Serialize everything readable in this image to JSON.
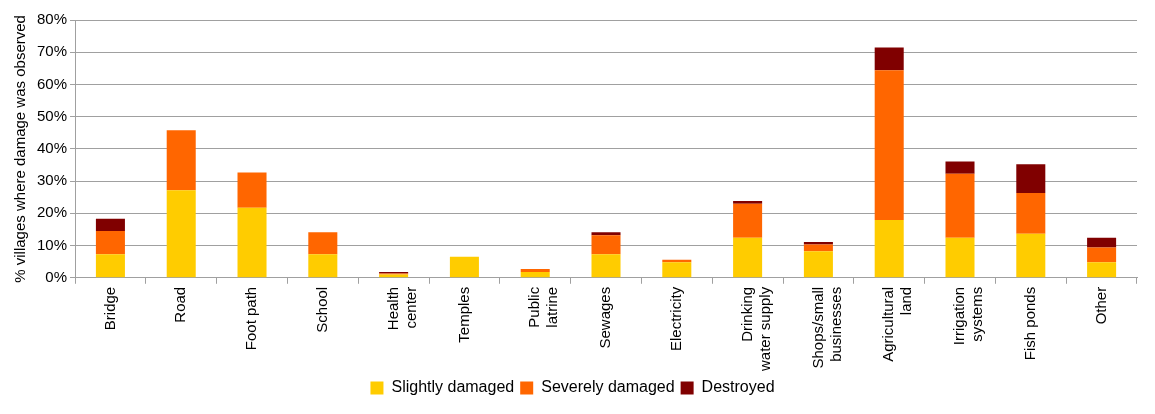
{
  "chart_data": {
    "type": "bar",
    "stacked": true,
    "ylabel": "% villages where damage was observed",
    "categories": [
      "Bridge",
      "Road",
      "Foot path",
      "School",
      "Health center",
      "Temples",
      "Public latrine",
      "Sewages",
      "Electricity",
      "Drinking water supply",
      "Shops/small businesses",
      "Agricultural land",
      "Irrigation systems",
      "Fish ponds",
      "Other"
    ],
    "series": [
      {
        "name": "Slightly damaged",
        "color": "#ffcc00",
        "values": [
          7.3,
          27.2,
          21.7,
          7.3,
          1.0,
          6.5,
          1.8,
          7.3,
          4.8,
          12.4,
          8.2,
          17.9,
          12.4,
          13.7,
          4.8
        ]
      },
      {
        "name": "Severely damaged",
        "color": "#ff6600",
        "values": [
          7.2,
          18.6,
          11.0,
          6.8,
          0.3,
          0,
          0.9,
          5.9,
          0.8,
          10.6,
          2.1,
          46.5,
          19.9,
          12.6,
          4.6
        ]
      },
      {
        "name": "Destroyed",
        "color": "#800000",
        "values": [
          3.8,
          0,
          0,
          0,
          0.5,
          0,
          0,
          0.9,
          0,
          0.8,
          0.8,
          7.1,
          3.8,
          8.9,
          3.0
        ]
      }
    ],
    "ylim": [
      0,
      80
    ],
    "yticks": [
      {
        "value": 0,
        "label": "0%"
      },
      {
        "value": 10,
        "label": "10%"
      },
      {
        "value": 20,
        "label": "20%"
      },
      {
        "value": 30,
        "label": "30%"
      },
      {
        "value": 40,
        "label": "40%"
      },
      {
        "value": 50,
        "label": "50%"
      },
      {
        "value": 60,
        "label": "60%"
      },
      {
        "value": 70,
        "label": "70%"
      },
      {
        "value": 80,
        "label": "80%"
      }
    ],
    "grid": "y",
    "legend": "bottom"
  }
}
